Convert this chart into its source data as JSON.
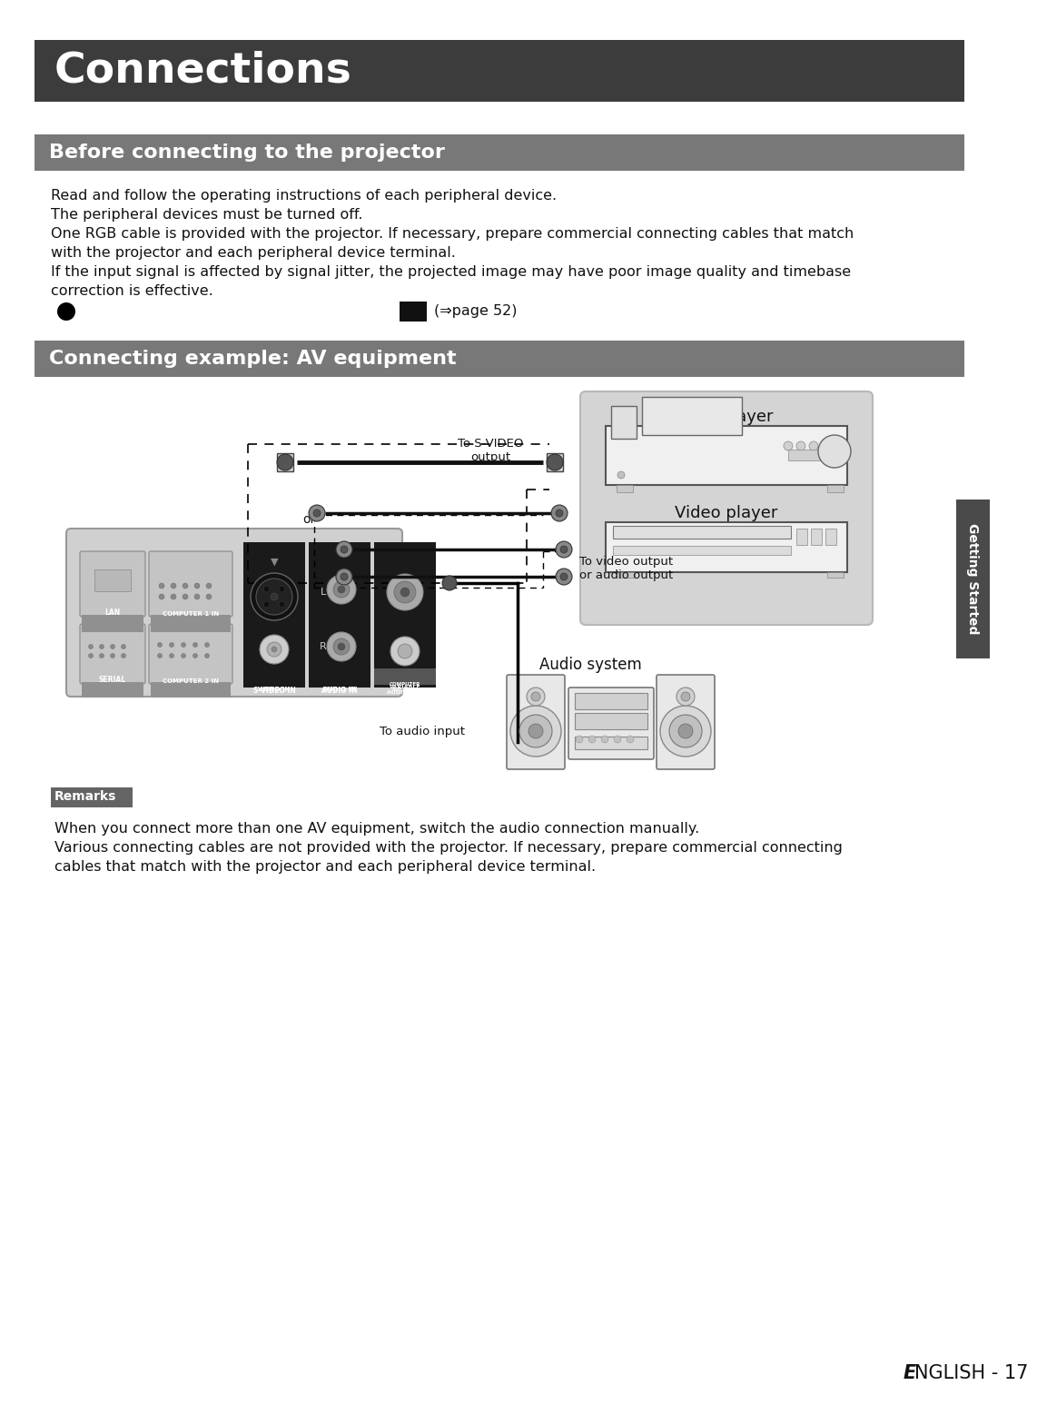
{
  "title": "Connections",
  "title_bg": "#3c3c3c",
  "title_color": "#ffffff",
  "section1_title": "Before connecting to the projector",
  "section1_bg": "#787878",
  "section1_color": "#ffffff",
  "section2_title": "Connecting example: AV equipment",
  "section2_bg": "#787878",
  "section2_color": "#ffffff",
  "body_text1": "Read and follow the operating instructions of each peripheral device.",
  "body_text2": "The peripheral devices must be turned off.",
  "body_text3a": "One RGB cable is provided with the projector. If necessary, prepare commercial connecting cables that match",
  "body_text3b": "with the projector and each peripheral device terminal.",
  "body_text4a": "If the input signal is affected by signal jitter, the projected image may have poor image quality and timebase",
  "body_text4b": "correction is effective.",
  "page_ref": "(⇒page 52)",
  "remarks_label": "Remarks",
  "remarks_bg": "#646464",
  "remarks_color": "#ffffff",
  "remarks_text1": "When you connect more than one AV equipment, switch the audio connection manually.",
  "remarks_text2a": "Various connecting cables are not provided with the projector. If necessary, prepare commercial connecting",
  "remarks_text2b": "cables that match with the projector and each peripheral device terminal.",
  "label_svideo": "To S-VIDEO\noutput",
  "label_or": "or",
  "label_video_audio": "To video output\nor audio output",
  "label_audio_input": "To audio input",
  "label_dvd": "DVD player",
  "label_video": "Video player",
  "label_audio_system": "Audio system",
  "getting_started_text": "Getting Started",
  "footer_italic": "E",
  "footer_rest": "NGLISH - 17",
  "bg_color": "#ffffff",
  "proj_bg": "#d0d0d0",
  "device_box_bg": "#d4d4d4"
}
